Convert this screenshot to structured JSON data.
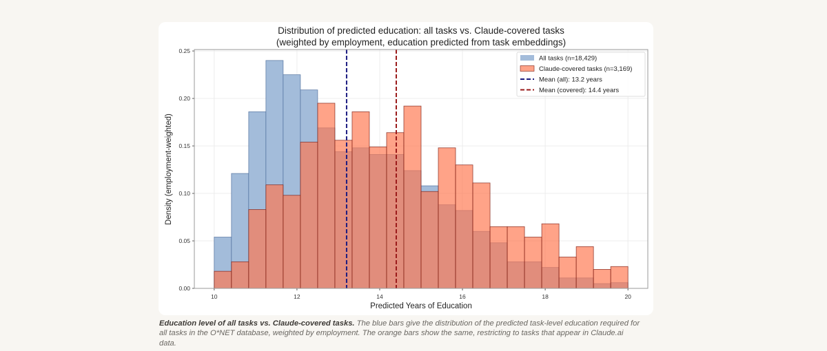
{
  "chart_data": {
    "type": "bar",
    "title": "Distribution of predicted education: all tasks vs. Claude-covered tasks",
    "subtitle": "(weighted by employment, education predicted from task embeddings)",
    "xlabel": "Predicted Years of Education",
    "ylabel": "Density (employment-weighted)",
    "xlim": [
      9.52,
      20.48
    ],
    "ylim": [
      0,
      0.2515
    ],
    "xticks": [
      "10",
      "12",
      "14",
      "16",
      "18",
      "20"
    ],
    "yticks": [
      "0.00",
      "0.05",
      "0.10",
      "0.15",
      "0.20",
      "0.25"
    ],
    "grid": true,
    "legend_position": "top-right",
    "bin_start": 10,
    "bin_end": 20,
    "series": [
      {
        "name": "All tasks (n=18,429)",
        "color": "#a3bcda",
        "edge": "#4a6a9a",
        "values": [
          0.054,
          0.121,
          0.186,
          0.24,
          0.225,
          0.209,
          0.169,
          0.144,
          0.148,
          0.141,
          0.141,
          0.124,
          0.108,
          0.088,
          0.082,
          0.06,
          0.048,
          0.028,
          0.028,
          0.022,
          0.011,
          0.011,
          0.005,
          0.006
        ]
      },
      {
        "name": "Claude-covered tasks (n=3,169)",
        "color": "#ff7850",
        "edge": "#7a1a10",
        "values": [
          0.018,
          0.028,
          0.083,
          0.109,
          0.098,
          0.154,
          0.195,
          0.156,
          0.186,
          0.149,
          0.164,
          0.192,
          0.102,
          0.148,
          0.13,
          0.111,
          0.065,
          0.065,
          0.054,
          0.068,
          0.033,
          0.044,
          0.02,
          0.023
        ]
      }
    ],
    "mean_lines": [
      {
        "name": "Mean (all): 13.2 years",
        "x": 13.2,
        "color": "#1a1a80"
      },
      {
        "name": "Mean (covered): 14.4 years",
        "x": 14.4,
        "color": "#9a1a1a"
      }
    ]
  },
  "caption": {
    "bold": "Education level of all tasks vs. Claude-covered tasks.",
    "text": " The blue bars give the distribution of the predicted task-level education required for all tasks in the O*NET database, weighted by employment. The orange bars show the same, restricting to tasks that appear in Claude.ai data."
  }
}
